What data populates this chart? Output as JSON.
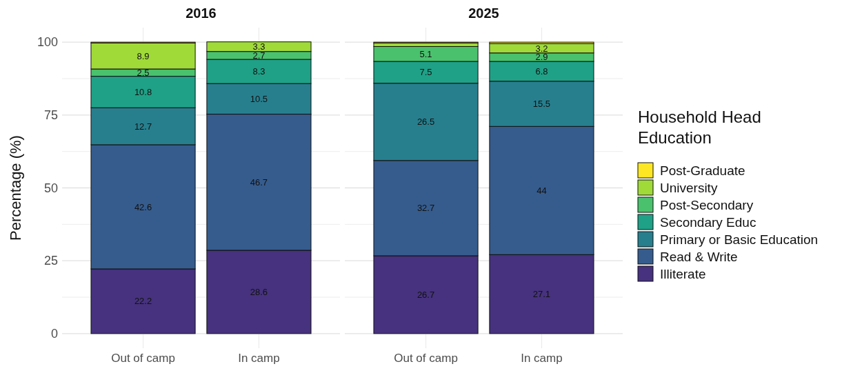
{
  "chart_data": [
    {
      "type": "bar",
      "title": "2016",
      "ylabel": "Percentage (%)",
      "categories": [
        "Out of camp",
        "In camp"
      ],
      "stacked": true,
      "ylim": [
        -5,
        105
      ],
      "yticks": [
        0,
        {
          "value": 12.5,
          "label": null
        },
        25,
        {
          "value": 37.5,
          "label": null
        },
        50,
        {
          "value": 62.5,
          "label": null
        },
        75,
        {
          "value": 87.5,
          "label": null
        },
        100
      ],
      "grid": true,
      "legend": false,
      "series": [
        {
          "color": "#46327e",
          "values": [
            22.2,
            28.6
          ],
          "value_labels": [
            "22.2",
            "28.6"
          ]
        },
        {
          "color": "#365c8d",
          "values": [
            42.6,
            46.7
          ],
          "value_labels": [
            "42.6",
            "46.7"
          ]
        },
        {
          "color": "#277f8e",
          "values": [
            12.7,
            10.5
          ],
          "value_labels": [
            "12.7",
            "10.5"
          ]
        },
        {
          "color": "#1fa187",
          "values": [
            10.8,
            8.3
          ],
          "value_labels": [
            "10.8",
            "8.3"
          ]
        },
        {
          "color": "#4ac16d",
          "values": [
            2.5,
            2.7
          ],
          "value_labels": [
            "2.5",
            "2.7"
          ]
        },
        {
          "color": "#a0da39",
          "values": [
            8.9,
            3.3
          ],
          "value_labels": [
            "8.9",
            "3.3"
          ]
        },
        {
          "color": "#fde725",
          "values": [
            0.3,
            0
          ],
          "value_labels": [
            null,
            null
          ]
        }
      ]
    },
    {
      "type": "bar",
      "title": "2025",
      "categories": [
        "Out of camp",
        "In camp"
      ],
      "stacked": true,
      "ylim": [
        -5,
        105
      ],
      "yticks": [
        0,
        {
          "value": 12.5,
          "label": null
        },
        25,
        {
          "value": 37.5,
          "label": null
        },
        50,
        {
          "value": 62.5,
          "label": null
        },
        75,
        {
          "value": 87.5,
          "label": null
        },
        100
      ],
      "grid": true,
      "legend": "right",
      "legend_title": "Household Head Education",
      "tick_labels": "x",
      "series": [
        {
          "name": "Illiterate",
          "color": "#46327e",
          "values": [
            26.7,
            27.1
          ],
          "value_labels": [
            "26.7",
            "27.1"
          ]
        },
        {
          "name": "Read & Write",
          "color": "#365c8d",
          "values": [
            32.7,
            44
          ],
          "value_labels": [
            "32.7",
            "44"
          ]
        },
        {
          "name": "Primary or Basic Education",
          "color": "#277f8e",
          "values": [
            26.5,
            15.5
          ],
          "value_labels": [
            "26.5",
            "15.5"
          ]
        },
        {
          "name": "Secondary Educ",
          "color": "#1fa187",
          "values": [
            7.5,
            6.8
          ],
          "value_labels": [
            "7.5",
            "6.8"
          ]
        },
        {
          "name": "Post-Secondary",
          "color": "#4ac16d",
          "values": [
            5.1,
            2.9
          ],
          "value_labels": [
            "5.1",
            "2.9"
          ]
        },
        {
          "name": "University",
          "color": "#a0da39",
          "values": [
            1.2,
            3.2
          ],
          "value_labels": [
            null,
            "3.2"
          ]
        },
        {
          "name": "Post-Graduate",
          "color": "#fde725",
          "values": [
            0.3,
            0.5
          ],
          "value_labels": [
            null,
            null
          ]
        }
      ]
    }
  ]
}
